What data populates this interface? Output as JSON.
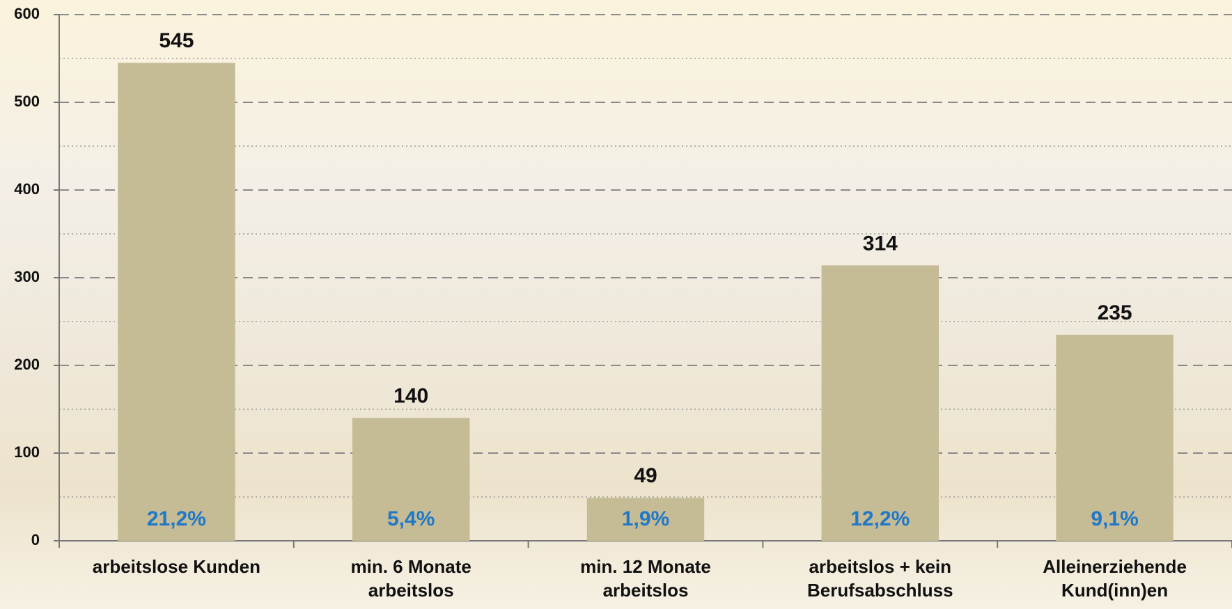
{
  "chart_data": {
    "type": "bar",
    "categories": [
      "arbeitslose Kunden",
      "min. 6 Monate arbeitslos",
      "min. 12 Monate arbeitslos",
      "arbeitslos + kein Berufsabschluss",
      "Alleinerziehende Kund(inn)en"
    ],
    "values": [
      545,
      140,
      49,
      314,
      235
    ],
    "color": "#c5bb94",
    "shares": {
      "values": [
        21.2,
        5.4,
        1.9,
        12.2,
        9.1
      ],
      "value_labels": [
        "21,2%",
        "5,4%",
        "1,9%",
        "12,2%",
        "9,1%"
      ],
      "color": "#1f78c8"
    },
    "ylim": [
      0,
      600
    ],
    "yticks": [
      0,
      100,
      200,
      300,
      400,
      500,
      600
    ],
    "grid": true,
    "minor_grid": true
  }
}
